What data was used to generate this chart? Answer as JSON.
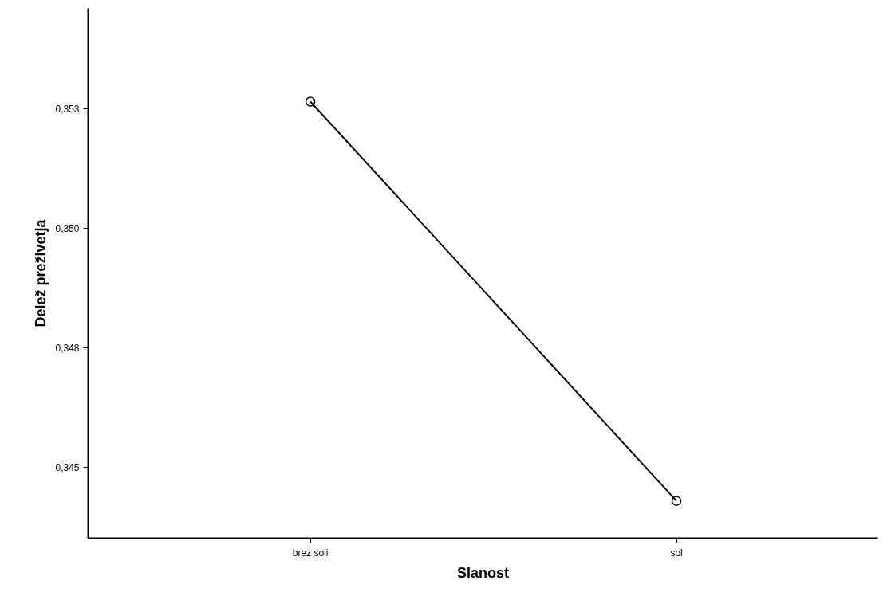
{
  "chart_data": {
    "type": "line",
    "xlabel": "Slanost",
    "ylabel": "Delež preživetja",
    "categories": [
      "brez soli",
      "sol"
    ],
    "series": [
      {
        "color": "#000000",
        "values": [
          0.35265,
          0.3443
        ]
      }
    ],
    "ylim": [
      0.34352,
      0.3546
    ],
    "yticks": [
      {
        "value": 0.345,
        "label": "0,345"
      },
      {
        "value": 0.3475,
        "label": "0,348"
      },
      {
        "value": 0.35,
        "label": "0,350"
      },
      {
        "value": 0.3525,
        "label": "0,353"
      }
    ],
    "marker": "circle",
    "line_style": "solid",
    "grid": false
  }
}
